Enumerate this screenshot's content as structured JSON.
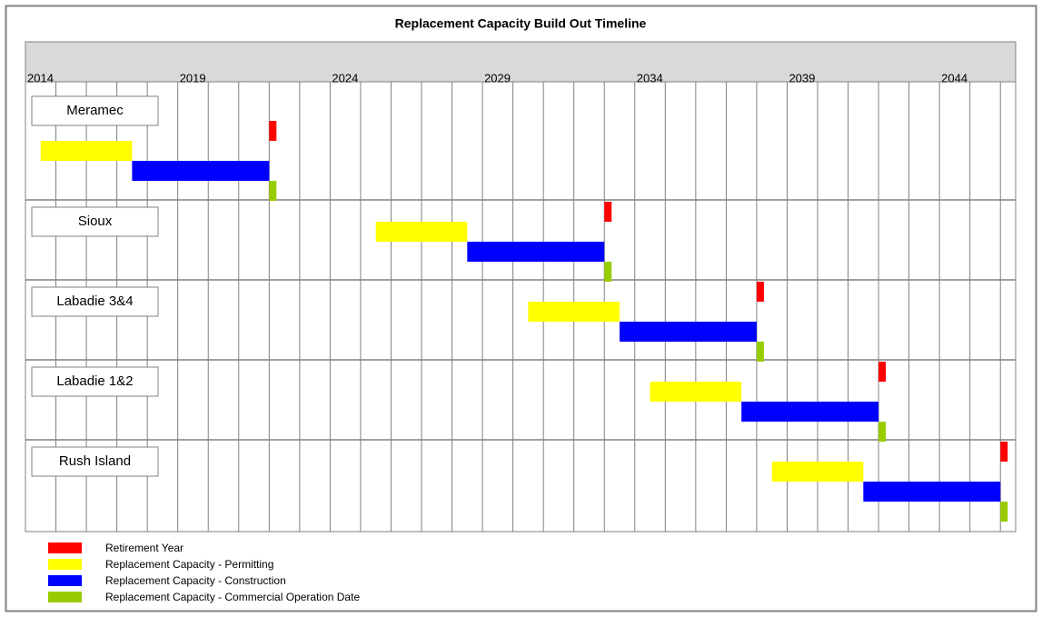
{
  "chart_data": {
    "type": "gantt",
    "title": "Replacement Capacity Build Out Timeline",
    "categories": [
      "Meramec",
      "Sioux",
      "Labadie 3&4",
      "Labadie 1&2",
      "Rush Island"
    ],
    "xlim": [
      2014,
      2046.5
    ],
    "xticks": [
      2014,
      2019,
      2024,
      2029,
      2034,
      2039,
      2044
    ],
    "minor_xticks": [
      2014,
      2015,
      2016,
      2017,
      2018,
      2019,
      2020,
      2021,
      2022,
      2023,
      2024,
      2025,
      2026,
      2027,
      2028,
      2029,
      2030,
      2031,
      2032,
      2033,
      2034,
      2035,
      2036,
      2037,
      2038,
      2039,
      2040,
      2041,
      2042,
      2043,
      2044,
      2045,
      2046
    ],
    "grid": true,
    "series": [
      {
        "name": "Retirement Year",
        "color": "#ff0000",
        "kind": "milestone",
        "values": [
          2022,
          2033,
          2038,
          2042,
          2046
        ]
      },
      {
        "name": "Replacement Capacity - Permitting",
        "color": "#ffff00",
        "kind": "span",
        "start": [
          2014.5,
          2025.5,
          2030.5,
          2034.5,
          2038.5
        ],
        "end": [
          2017.5,
          2028.5,
          2033.5,
          2037.5,
          2041.5
        ]
      },
      {
        "name": "Replacement Capacity - Construction",
        "color": "#0000ff",
        "kind": "span",
        "start": [
          2017.5,
          2028.5,
          2033.5,
          2037.5,
          2041.5
        ],
        "end": [
          2022,
          2033,
          2038,
          2042,
          2046
        ]
      },
      {
        "name": "Replacement Capacity - Commercial Operation Date",
        "color": "#99cc00",
        "kind": "milestone",
        "values": [
          2022,
          2033,
          2038,
          2042,
          2046
        ]
      }
    ]
  }
}
